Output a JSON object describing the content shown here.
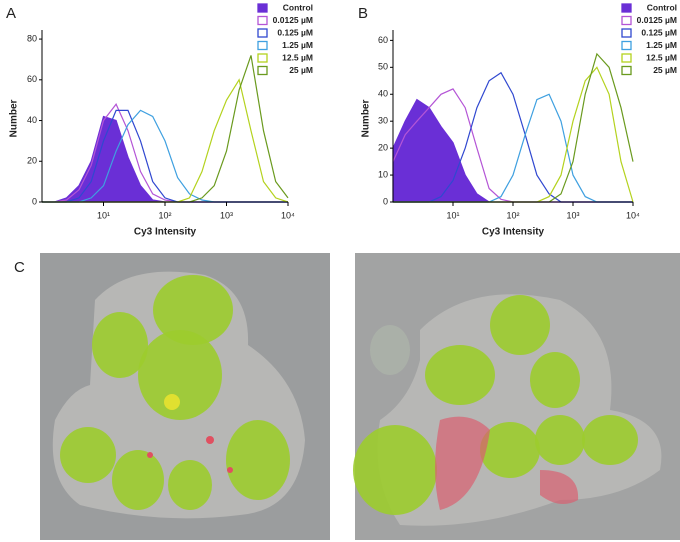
{
  "chart_data": [
    {
      "type": "line",
      "label": "A",
      "ylabel": "Number",
      "xlabel": "Cy3 Intensity",
      "xscale": "log",
      "xlim": [
        1,
        10000
      ],
      "xticks": [
        {
          "value": 10,
          "label": "10¹"
        },
        {
          "value": 100,
          "label": "10²"
        },
        {
          "value": 1000,
          "label": "10³"
        },
        {
          "value": 10000,
          "label": "10⁴"
        }
      ],
      "ylim": [
        0,
        82
      ],
      "yticks": [
        0,
        20,
        40,
        60,
        80
      ],
      "x": [
        1,
        1.6,
        2.5,
        4,
        6.3,
        10,
        16,
        25,
        40,
        63,
        100,
        160,
        250,
        400,
        630,
        1000,
        1600,
        2500,
        4000,
        6300,
        10000
      ],
      "series": [
        {
          "name": "Control",
          "color": "#6a2fd6",
          "filled": true,
          "values": [
            0,
            0,
            2,
            8,
            20,
            42,
            40,
            22,
            8,
            1,
            0,
            0,
            0,
            0,
            0,
            0,
            0,
            0,
            0,
            0,
            0
          ]
        },
        {
          "name": "0.0125 µM",
          "color": "#b455d6",
          "filled": false,
          "values": [
            0,
            0,
            1,
            6,
            18,
            40,
            48,
            35,
            15,
            4,
            1,
            0,
            0,
            0,
            0,
            0,
            0,
            0,
            0,
            0,
            0
          ]
        },
        {
          "name": "0.125 µM",
          "color": "#3048d0",
          "filled": false,
          "values": [
            0,
            0,
            0,
            2,
            10,
            30,
            45,
            45,
            30,
            10,
            2,
            0,
            0,
            0,
            0,
            0,
            0,
            0,
            0,
            0,
            0
          ]
        },
        {
          "name": "1.25 µM",
          "color": "#3fa0e0",
          "filled": false,
          "values": [
            0,
            0,
            0,
            0,
            2,
            8,
            25,
            38,
            45,
            42,
            30,
            12,
            4,
            1,
            0,
            0,
            0,
            0,
            0,
            0,
            0
          ]
        },
        {
          "name": "12.5 µM",
          "color": "#b4d21e",
          "filled": false,
          "values": [
            0,
            0,
            0,
            0,
            0,
            0,
            0,
            0,
            0,
            0,
            0,
            0,
            2,
            15,
            35,
            50,
            60,
            35,
            10,
            2,
            0
          ]
        },
        {
          "name": "25 µM",
          "color": "#6a9a1e",
          "filled": false,
          "values": [
            0,
            0,
            0,
            0,
            0,
            0,
            0,
            0,
            0,
            0,
            0,
            0,
            0,
            2,
            8,
            25,
            55,
            72,
            35,
            10,
            2
          ]
        }
      ]
    },
    {
      "type": "line",
      "label": "B",
      "ylabel": "Number",
      "xlabel": "Cy3 Intensity",
      "xscale": "log",
      "xlim": [
        1,
        10000
      ],
      "xticks": [
        {
          "value": 10,
          "label": "10¹"
        },
        {
          "value": 100,
          "label": "10²"
        },
        {
          "value": 1000,
          "label": "10³"
        },
        {
          "value": 10000,
          "label": "10⁴"
        }
      ],
      "ylim": [
        0,
        62
      ],
      "yticks": [
        0,
        10,
        20,
        30,
        40,
        50,
        60
      ],
      "x": [
        1,
        1.6,
        2.5,
        4,
        6.3,
        10,
        16,
        25,
        40,
        63,
        100,
        160,
        250,
        400,
        630,
        1000,
        1600,
        2500,
        4000,
        6300,
        10000
      ],
      "series": [
        {
          "name": "Control",
          "color": "#6a2fd6",
          "filled": true,
          "values": [
            20,
            30,
            38,
            35,
            28,
            22,
            10,
            3,
            0,
            0,
            0,
            0,
            0,
            0,
            0,
            0,
            0,
            0,
            0,
            0,
            0
          ]
        },
        {
          "name": "0.0125 µM",
          "color": "#b455d6",
          "filled": false,
          "values": [
            15,
            25,
            30,
            35,
            40,
            42,
            35,
            20,
            5,
            1,
            0,
            0,
            0,
            0,
            0,
            0,
            0,
            0,
            0,
            0,
            0
          ]
        },
        {
          "name": "0.125 µM",
          "color": "#3048d0",
          "filled": false,
          "values": [
            0,
            0,
            0,
            0,
            2,
            8,
            20,
            35,
            45,
            48,
            40,
            25,
            10,
            3,
            0,
            0,
            0,
            0,
            0,
            0,
            0
          ]
        },
        {
          "name": "1.25 µM",
          "color": "#3fa0e0",
          "filled": false,
          "values": [
            0,
            0,
            0,
            0,
            0,
            0,
            0,
            0,
            0,
            2,
            10,
            25,
            38,
            40,
            30,
            10,
            2,
            0,
            0,
            0,
            0
          ]
        },
        {
          "name": "12.5 µM",
          "color": "#b4d21e",
          "filled": false,
          "values": [
            0,
            0,
            0,
            0,
            0,
            0,
            0,
            0,
            0,
            0,
            0,
            0,
            0,
            2,
            10,
            30,
            45,
            50,
            40,
            15,
            0
          ]
        },
        {
          "name": "25 µM",
          "color": "#6a9a1e",
          "filled": false,
          "values": [
            0,
            0,
            0,
            0,
            0,
            0,
            0,
            0,
            0,
            0,
            0,
            0,
            0,
            0,
            3,
            15,
            40,
            55,
            50,
            35,
            15
          ]
        }
      ]
    }
  ],
  "images_label": "C"
}
